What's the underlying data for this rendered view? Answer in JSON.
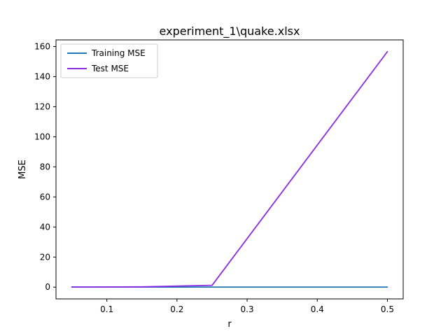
{
  "chart_data": {
    "type": "line",
    "title": "experiment_1\\quake.xlsx",
    "xlabel": "r",
    "ylabel": "MSE",
    "xlim": [
      0.0275,
      0.5225
    ],
    "ylim": [
      -7.8,
      164.4
    ],
    "xticks": [
      0.1,
      0.2,
      0.3,
      0.4,
      0.5
    ],
    "yticks": [
      0,
      20,
      40,
      60,
      80,
      100,
      120,
      140,
      160
    ],
    "x": [
      0.05,
      0.15,
      0.25,
      0.5
    ],
    "series": [
      {
        "name": "Training MSE",
        "color": "#1f77b4",
        "values": [
          0.05,
          0.05,
          0.05,
          0.05
        ]
      },
      {
        "name": "Test MSE",
        "color": "#8a2be2",
        "values": [
          0.1,
          0.2,
          1.2,
          156.6
        ]
      }
    ],
    "legend": {
      "placement": "top-left"
    },
    "grid": false
  }
}
